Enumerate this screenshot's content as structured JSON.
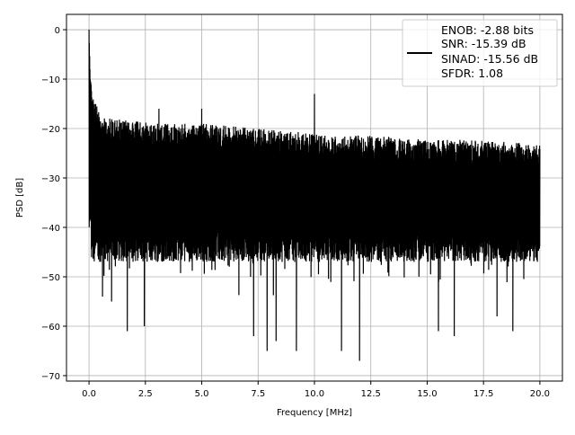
{
  "chart_data": {
    "type": "line",
    "title": "",
    "xlabel": "Frequency [MHz]",
    "ylabel": "PSD [dB]",
    "xlim": [
      -1.0,
      21.0
    ],
    "ylim": [
      -71.1,
      3.1
    ],
    "xticks": [
      0.0,
      2.5,
      5.0,
      7.5,
      10.0,
      12.5,
      15.0,
      17.5,
      20.0
    ],
    "xtick_labels": [
      "0.0",
      "2.5",
      "5.0",
      "7.5",
      "10.0",
      "12.5",
      "15.0",
      "17.5",
      "20.0"
    ],
    "yticks": [
      0,
      -10,
      -20,
      -30,
      -40,
      -50,
      -60,
      -70
    ],
    "ytick_labels": [
      "0",
      "−10",
      "−20",
      "−30",
      "−40",
      "−50",
      "−60",
      "−70"
    ],
    "grid": true,
    "legend_placement": "top-right",
    "legend": [
      "ENOB: -2.88 bits",
      "SNR: -15.39 dB",
      "SINAD: -15.56 dB",
      "SFDR: 1.08"
    ],
    "series": [
      {
        "name": "PSD",
        "color": "#000000",
        "x_range": [
          0,
          20
        ],
        "upper_envelope": {
          "x": [
            0,
            0.05,
            0.2,
            0.5,
            1,
            3,
            5,
            7.5,
            10,
            12.5,
            15,
            17.5,
            20
          ],
          "y": [
            0,
            -10,
            -14,
            -17,
            -18,
            -19,
            -19,
            -20,
            -21,
            -21.5,
            -22,
            -22.5,
            -23
          ]
        },
        "typical_lower": -44,
        "peaks": [
          {
            "x": 0.0,
            "y": 0
          },
          {
            "x": 10.0,
            "y": -13
          },
          {
            "x": 3.1,
            "y": -16
          },
          {
            "x": 5.0,
            "y": -16
          }
        ],
        "dips": [
          {
            "x": 1.7,
            "y": -61
          },
          {
            "x": 2.45,
            "y": -60
          },
          {
            "x": 7.3,
            "y": -62
          },
          {
            "x": 7.9,
            "y": -65
          },
          {
            "x": 8.3,
            "y": -63
          },
          {
            "x": 9.2,
            "y": -65
          },
          {
            "x": 11.2,
            "y": -65
          },
          {
            "x": 12.0,
            "y": -67
          },
          {
            "x": 15.5,
            "y": -61
          },
          {
            "x": 16.2,
            "y": -62
          },
          {
            "x": 18.8,
            "y": -61
          },
          {
            "x": 18.1,
            "y": -58
          },
          {
            "x": 0.6,
            "y": -54
          },
          {
            "x": 1.0,
            "y": -55
          }
        ]
      }
    ]
  }
}
